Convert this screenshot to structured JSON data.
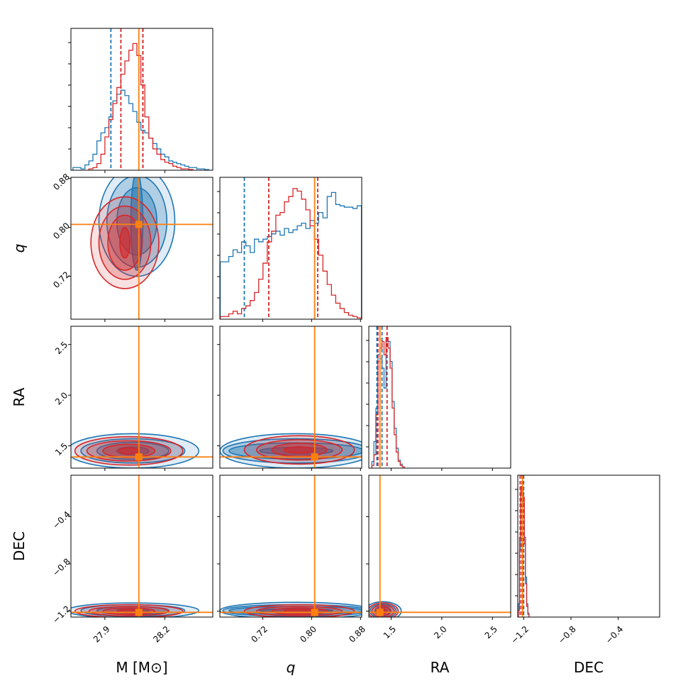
{
  "chart_data": {
    "type": "corner",
    "parameters": [
      {
        "key": "M",
        "label": "M [M⊙]",
        "range": [
          27.73,
          28.44
        ],
        "ticks": [
          27.9,
          28.2
        ]
      },
      {
        "key": "q",
        "label": "q",
        "range": [
          0.65,
          0.882
        ],
        "ticks": [
          0.72,
          0.8,
          0.88
        ]
      },
      {
        "key": "RA",
        "label": "RA",
        "range": [
          1.28,
          2.68
        ],
        "ticks": [
          1.5,
          2.0,
          2.5
        ]
      },
      {
        "key": "DEC",
        "label": "DEC",
        "range": [
          -1.25,
          -0.05
        ],
        "ticks": [
          -1.2,
          -0.8,
          -0.4
        ]
      }
    ],
    "tick_labels": {
      "M": [
        "27.9",
        "28.2"
      ],
      "q": [
        "0.72",
        "0.80",
        "0.88"
      ],
      "RA": [
        "1.5",
        "2.0",
        "2.5"
      ],
      "DEC": [
        "−1.2",
        "−0.8",
        "−0.4"
      ]
    },
    "truth": {
      "M": 28.07,
      "q": 0.805,
      "RA": 1.39,
      "DEC": -1.21
    },
    "series": [
      {
        "color": "#1f77b4",
        "quantiles": {
          "M": [
            27.93,
            28.09
          ],
          "q": [
            0.69,
            null
          ],
          "RA": [
            1.36,
            1.41
          ],
          "DEC": [
            -1.215,
            -1.2
          ]
        },
        "histograms": {
          "M": {
            "x": [
              27.75,
              27.77,
              27.79,
              27.81,
              27.83,
              27.85,
              27.87,
              27.89,
              27.91,
              27.93,
              27.95,
              27.97,
              27.99,
              28.01,
              28.03,
              28.05,
              28.07,
              28.09,
              28.11,
              28.13,
              28.15,
              28.17,
              28.19,
              28.21,
              28.23,
              28.25,
              28.27,
              28.29,
              28.31,
              28.33,
              28.35,
              28.37,
              28.39,
              28.41
            ],
            "y": [
              0.02,
              0.02,
              0.01,
              0.04,
              0.07,
              0.12,
              0.22,
              0.28,
              0.32,
              0.4,
              0.52,
              0.57,
              0.6,
              0.56,
              0.5,
              0.44,
              0.36,
              0.3,
              0.28,
              0.24,
              0.2,
              0.16,
              0.12,
              0.1,
              0.07,
              0.06,
              0.05,
              0.04,
              0.03,
              0.02,
              0.02,
              0.01,
              0.01,
              0.005
            ]
          },
          "q": {
            "x": [
              0.654,
              0.661,
              0.668,
              0.675,
              0.682,
              0.689,
              0.696,
              0.703,
              0.71,
              0.717,
              0.724,
              0.731,
              0.738,
              0.745,
              0.752,
              0.759,
              0.766,
              0.773,
              0.78,
              0.787,
              0.794,
              0.801,
              0.808,
              0.815,
              0.822,
              0.829,
              0.836,
              0.843,
              0.85,
              0.857,
              0.864,
              0.871,
              0.878
            ],
            "y": [
              0.43,
              0.43,
              0.47,
              0.52,
              0.5,
              0.58,
              0.55,
              0.5,
              0.6,
              0.58,
              0.6,
              0.62,
              0.64,
              0.66,
              0.63,
              0.68,
              0.65,
              0.67,
              0.7,
              0.72,
              0.68,
              0.74,
              0.72,
              0.8,
              0.76,
              0.92,
              0.95,
              0.86,
              0.85,
              0.84,
              0.84,
              0.83,
              0.85
            ]
          },
          "RA": {
            "x": [
              1.32,
              1.34,
              1.36,
              1.38,
              1.4,
              1.42,
              1.44,
              1.46,
              1.48,
              1.5,
              1.52,
              1.54,
              1.56,
              1.58,
              1.6,
              1.62
            ],
            "y": [
              0.05,
              0.2,
              0.45,
              0.85,
              0.82,
              0.75,
              0.6,
              0.95,
              0.95,
              0.8,
              0.5,
              0.3,
              0.15,
              0.06,
              0.03,
              0.01
            ]
          },
          "DEC": {
            "x": [
              -1.24,
              -1.23,
              -1.22,
              -1.21,
              -1.2,
              -1.19,
              -1.18,
              -1.17,
              -1.16
            ],
            "y": [
              0.1,
              0.5,
              0.92,
              0.95,
              0.85,
              0.6,
              0.3,
              0.1,
              0.03
            ]
          }
        }
      },
      {
        "color": "#d62728",
        "quantiles": {
          "M": [
            27.98,
            28.09
          ],
          "q": [
            0.73,
            0.81
          ],
          "RA": [
            1.37,
            1.46
          ],
          "DEC": [
            -1.23,
            -1.205
          ]
        },
        "histograms": {
          "M": {
            "x": [
              27.83,
              27.85,
              27.87,
              27.89,
              27.91,
              27.93,
              27.95,
              27.97,
              27.99,
              28.01,
              28.03,
              28.05,
              28.07,
              28.09,
              28.11,
              28.13,
              28.15,
              28.17,
              28.19,
              28.21,
              28.23,
              28.25,
              28.27,
              28.29,
              28.31,
              28.33
            ],
            "y": [
              0.01,
              0.02,
              0.05,
              0.12,
              0.25,
              0.38,
              0.5,
              0.62,
              0.72,
              0.82,
              0.9,
              0.95,
              0.86,
              0.64,
              0.4,
              0.24,
              0.16,
              0.12,
              0.08,
              0.06,
              0.05,
              0.03,
              0.02,
              0.01,
              0.01,
              0.005
            ]
          },
          "q": {
            "x": [
              0.654,
              0.661,
              0.668,
              0.675,
              0.682,
              0.689,
              0.696,
              0.703,
              0.71,
              0.717,
              0.724,
              0.731,
              0.738,
              0.745,
              0.752,
              0.759,
              0.766,
              0.773,
              0.78,
              0.787,
              0.794,
              0.801,
              0.808,
              0.815,
              0.822,
              0.829,
              0.836,
              0.843,
              0.85,
              0.857,
              0.864,
              0.871,
              0.878
            ],
            "y": [
              0.02,
              0.02,
              0.04,
              0.06,
              0.04,
              0.08,
              0.1,
              0.14,
              0.2,
              0.3,
              0.42,
              0.58,
              0.66,
              0.78,
              0.8,
              0.88,
              0.92,
              0.98,
              0.96,
              0.9,
              0.82,
              0.7,
              0.6,
              0.48,
              0.36,
              0.26,
              0.18,
              0.12,
              0.08,
              0.05,
              0.03,
              0.02,
              0.01
            ]
          },
          "RA": {
            "x": [
              1.32,
              1.34,
              1.36,
              1.38,
              1.4,
              1.42,
              1.44,
              1.46,
              1.48,
              1.5,
              1.52,
              1.54,
              1.56,
              1.58,
              1.6,
              1.62
            ],
            "y": [
              0.02,
              0.1,
              0.4,
              0.8,
              0.9,
              0.95,
              0.85,
              0.98,
              0.9,
              0.75,
              0.45,
              0.25,
              0.12,
              0.05,
              0.02,
              0.01
            ]
          },
          "DEC": {
            "x": [
              -1.24,
              -1.23,
              -1.22,
              -1.21,
              -1.2,
              -1.19,
              -1.18,
              -1.17,
              -1.16
            ],
            "y": [
              0.05,
              0.6,
              0.98,
              0.95,
              0.9,
              0.55,
              0.25,
              0.08,
              0.02
            ]
          }
        }
      }
    ],
    "contours_2d": [
      {
        "x": "M",
        "y": "q",
        "series": [
          {
            "color": "#1f77b4",
            "center": [
              28.06,
              0.81
            ],
            "levels": [
              [
                0.19,
                0.09
              ],
              [
                0.15,
                0.075
              ],
              [
                0.1,
                0.055
              ],
              [
                0.03,
                0.08
              ]
            ]
          },
          {
            "color": "#d62728",
            "center": [
              28.0,
              0.775
            ],
            "levels": [
              [
                0.17,
                0.075
              ],
              [
                0.13,
                0.06
              ],
              [
                0.085,
                0.045
              ],
              [
                0.025,
                0.025
              ]
            ]
          }
        ]
      },
      {
        "x": "M",
        "y": "RA",
        "series": [
          {
            "color": "#1f77b4",
            "center": [
              28.04,
              1.45
            ],
            "levels": [
              [
                0.33,
                0.17
              ],
              [
                0.26,
                0.12
              ],
              [
                0.18,
                0.085
              ],
              [
                0.08,
                0.04
              ]
            ]
          },
          {
            "color": "#d62728",
            "center": [
              28.02,
              1.45
            ],
            "levels": [
              [
                0.27,
                0.14
              ],
              [
                0.21,
                0.1
              ],
              [
                0.13,
                0.065
              ],
              [
                0.05,
                0.03
              ]
            ]
          }
        ]
      },
      {
        "x": "q",
        "y": "RA",
        "series": [
          {
            "color": "#1f77b4",
            "center": [
              0.775,
              1.45
            ],
            "levels": [
              [
                0.125,
                0.17
              ],
              [
                0.12,
                0.12
              ],
              [
                0.11,
                0.08
              ],
              [
                0.06,
                0.035
              ]
            ]
          },
          {
            "color": "#d62728",
            "center": [
              0.78,
              1.46
            ],
            "levels": [
              [
                0.09,
                0.14
              ],
              [
                0.07,
                0.1
              ],
              [
                0.045,
                0.065
              ],
              [
                0.025,
                0.03
              ]
            ]
          }
        ]
      },
      {
        "x": "M",
        "y": "DEC",
        "series": [
          {
            "color": "#1f77b4",
            "center": [
              28.04,
              -1.195
            ],
            "levels": [
              [
                0.33,
                0.065
              ],
              [
                0.26,
                0.05
              ],
              [
                0.18,
                0.035
              ],
              [
                0.08,
                0.018
              ]
            ]
          },
          {
            "color": "#d62728",
            "center": [
              28.02,
              -1.2
            ],
            "levels": [
              [
                0.27,
                0.055
              ],
              [
                0.2,
                0.04
              ],
              [
                0.13,
                0.028
              ],
              [
                0.05,
                0.014
              ]
            ]
          }
        ]
      },
      {
        "x": "q",
        "y": "DEC",
        "series": [
          {
            "color": "#1f77b4",
            "center": [
              0.775,
              -1.195
            ],
            "levels": [
              [
                0.125,
                0.07
              ],
              [
                0.12,
                0.05
              ],
              [
                0.11,
                0.035
              ],
              [
                0.06,
                0.015
              ]
            ]
          },
          {
            "color": "#d62728",
            "center": [
              0.78,
              -1.2
            ],
            "levels": [
              [
                0.09,
                0.055
              ],
              [
                0.07,
                0.04
              ],
              [
                0.045,
                0.028
              ],
              [
                0.025,
                0.014
              ]
            ]
          }
        ]
      },
      {
        "x": "RA",
        "y": "DEC",
        "series": [
          {
            "color": "#1f77b4",
            "center": [
              1.42,
              -1.2
            ],
            "levels": [
              [
                0.18,
                0.08
              ],
              [
                0.13,
                0.06
              ],
              [
                0.08,
                0.04
              ],
              [
                0.04,
                0.02
              ]
            ]
          },
          {
            "color": "#d62728",
            "center": [
              1.42,
              -1.2
            ],
            "levels": [
              [
                0.15,
                0.07
              ],
              [
                0.11,
                0.05
              ],
              [
                0.07,
                0.035
              ],
              [
                0.035,
                0.018
              ]
            ]
          }
        ]
      }
    ],
    "truth_color": "#ff7f0e",
    "grid": false,
    "legend": "none"
  }
}
